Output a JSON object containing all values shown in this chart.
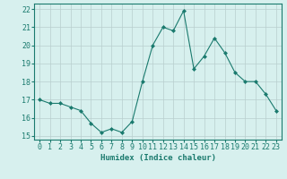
{
  "x": [
    0,
    1,
    2,
    3,
    4,
    5,
    6,
    7,
    8,
    9,
    10,
    11,
    12,
    13,
    14,
    15,
    16,
    17,
    18,
    19,
    20,
    21,
    22,
    23
  ],
  "y": [
    17.0,
    16.8,
    16.8,
    16.6,
    16.4,
    15.7,
    15.2,
    15.4,
    15.2,
    15.8,
    18.0,
    20.0,
    21.0,
    20.8,
    21.9,
    18.7,
    19.4,
    20.4,
    19.6,
    18.5,
    18.0,
    18.0,
    17.3,
    16.4
  ],
  "line_color": "#1a7a6e",
  "marker": "D",
  "marker_size": 2.0,
  "bg_color": "#d7f0ee",
  "grid_color": "#b8cece",
  "xlabel": "Humidex (Indice chaleur)",
  "xlim": [
    -0.5,
    23.5
  ],
  "ylim": [
    14.8,
    22.3
  ],
  "yticks": [
    15,
    16,
    17,
    18,
    19,
    20,
    21,
    22
  ],
  "xticks": [
    0,
    1,
    2,
    3,
    4,
    5,
    6,
    7,
    8,
    9,
    10,
    11,
    12,
    13,
    14,
    15,
    16,
    17,
    18,
    19,
    20,
    21,
    22,
    23
  ],
  "label_fontsize": 6.5,
  "tick_fontsize": 6.0
}
